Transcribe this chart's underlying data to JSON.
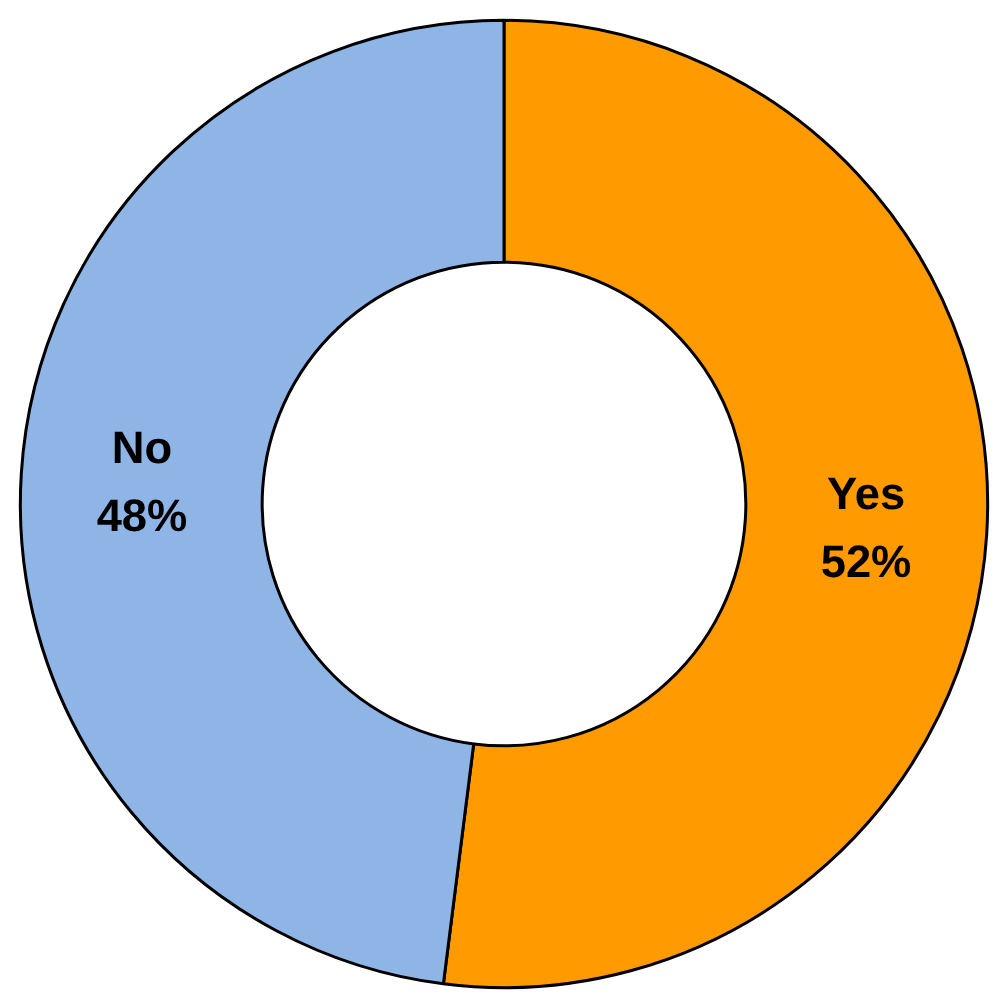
{
  "chart_data": {
    "type": "donut",
    "categories": [
      "Yes",
      "No"
    ],
    "values": [
      52,
      48
    ],
    "colors": [
      "#ff9a00",
      "#8fb4e6"
    ],
    "value_labels": [
      "52%",
      "48%"
    ]
  }
}
